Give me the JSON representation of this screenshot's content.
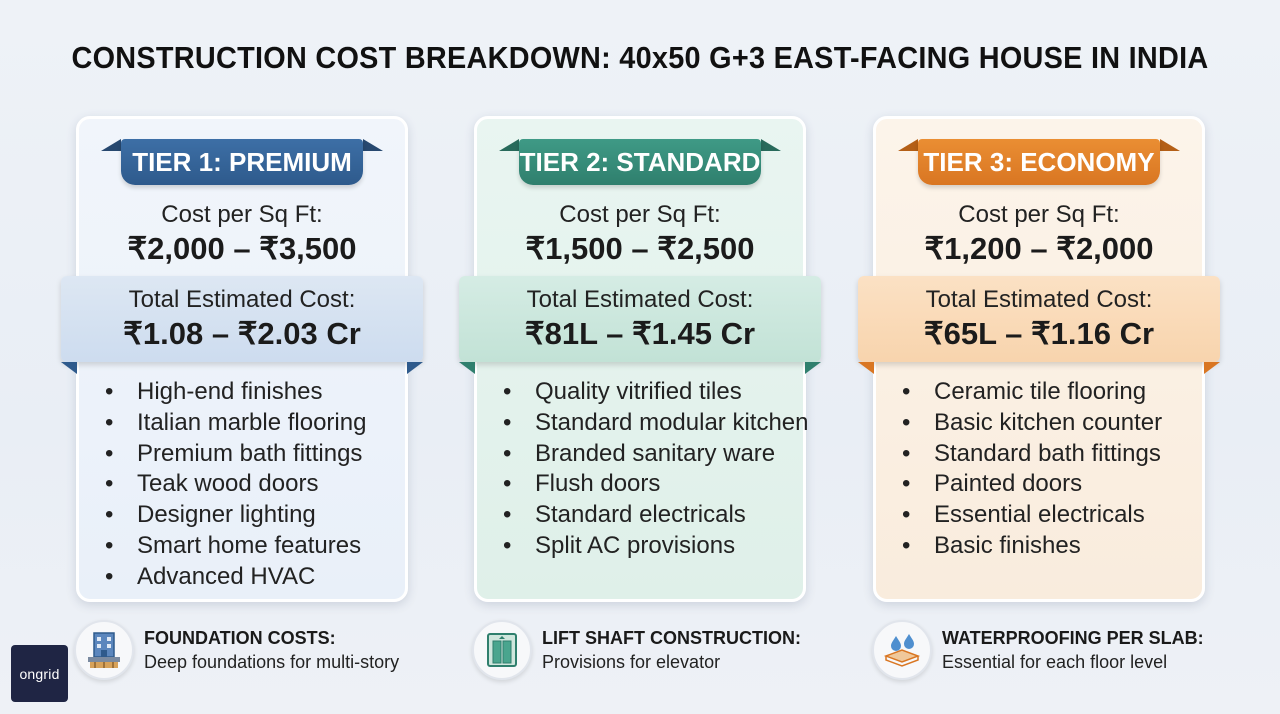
{
  "title": "CONSTRUCTION COST BREAKDOWN: 40x50 G+3 EAST-FACING HOUSE IN INDIA",
  "tiers": [
    {
      "name": "TIER 1: PREMIUM",
      "cost_label": "Cost per Sq Ft:",
      "cost_value": "₹2,000 – ₹3,500",
      "total_label": "Total Estimated Cost:",
      "total_value": "₹1.08 – ₹2.03 Cr",
      "features": [
        "High-end finishes",
        "Italian marble flooring",
        "Premium bath fittings",
        "Teak wood doors",
        "Designer lighting",
        "Smart home features",
        "Advanced HVAC"
      ],
      "color": "#2e5a8c"
    },
    {
      "name": "TIER 2: STANDARD",
      "cost_label": "Cost per Sq Ft:",
      "cost_value": "₹1,500 – ₹2,500",
      "total_label": "Total Estimated Cost:",
      "total_value": "₹81L – ₹1.45 Cr",
      "features": [
        "Quality vitrified tiles",
        "Standard modular kitchen",
        "Branded sanitary ware",
        "Flush doors",
        "Standard electricals",
        "Split AC provisions"
      ],
      "color": "#2f7f6d"
    },
    {
      "name": "TIER 3: ECONOMY",
      "cost_label": "Cost per Sq Ft:",
      "cost_value": "₹1,200 – ₹2,000",
      "total_label": "Total Estimated Cost:",
      "total_value": "₹65L – ₹1.16 Cr",
      "features": [
        "Ceramic tile flooring",
        "Basic kitchen counter",
        "Standard bath fittings",
        "Painted doors",
        "Essential electricals",
        "Basic finishes"
      ],
      "color": "#d97622"
    }
  ],
  "footer": [
    {
      "icon": "building-foundation-icon",
      "title": "FOUNDATION COSTS:",
      "desc": "Deep foundations for multi-story"
    },
    {
      "icon": "elevator-icon",
      "title": "LIFT SHAFT CONSTRUCTION:",
      "desc": "Provisions for elevator"
    },
    {
      "icon": "water-drops-icon",
      "title": "WATERPROOFING PER SLAB:",
      "desc": "Essential for each floor level"
    }
  ],
  "logo": "ongrid"
}
